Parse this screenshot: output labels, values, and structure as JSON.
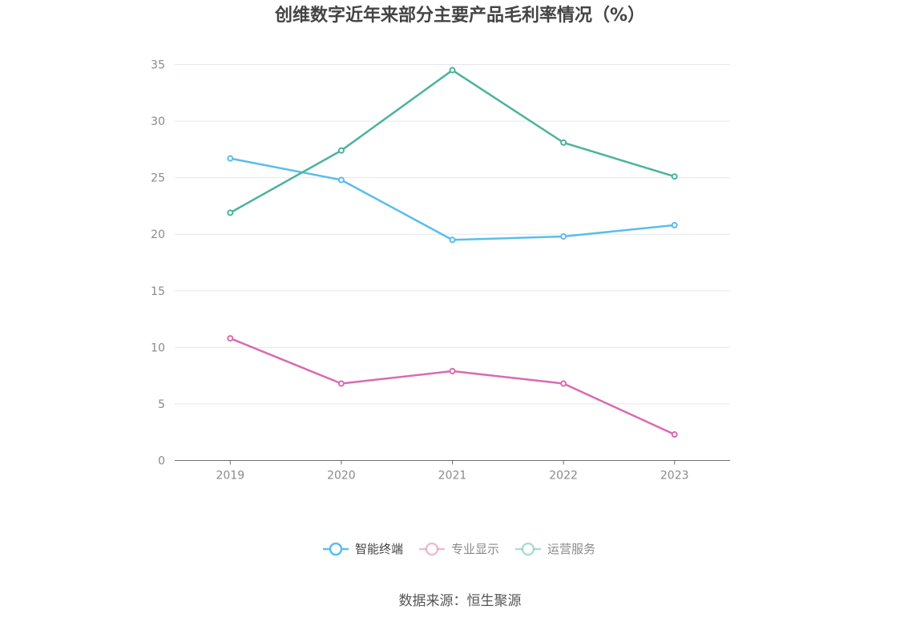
{
  "chart_data": {
    "type": "line",
    "title": "创维数字近年来部分主要产品毛利率情况（%）",
    "categories": [
      "2019",
      "2020",
      "2021",
      "2022",
      "2023"
    ],
    "ylim": [
      0,
      35
    ],
    "yticks": [
      "0",
      "5",
      "10",
      "15",
      "20",
      "25",
      "30",
      "35"
    ],
    "grid": true,
    "legend_position": "bottom",
    "series": [
      {
        "name": "智能终端",
        "values": [
          26.7,
          24.8,
          19.5,
          19.8,
          20.8
        ],
        "color": "#5bbdec",
        "active": true
      },
      {
        "name": "专业显示",
        "values": [
          10.8,
          6.8,
          7.9,
          6.8,
          2.3
        ],
        "color": "#d96bb0",
        "active": false
      },
      {
        "name": "运营服务",
        "values": [
          21.9,
          27.4,
          34.5,
          28.1,
          25.1
        ],
        "color": "#4cb39b",
        "active": false
      }
    ],
    "source": "数据来源：恒生聚源"
  },
  "colors": {
    "grid": "#e3e8ef",
    "axis": "#6f6f6f",
    "tick_label": "#8a8a8a",
    "title": "#444444",
    "legend_active_text": "#444444",
    "legend_inactive_text": "#8a8a8a"
  }
}
